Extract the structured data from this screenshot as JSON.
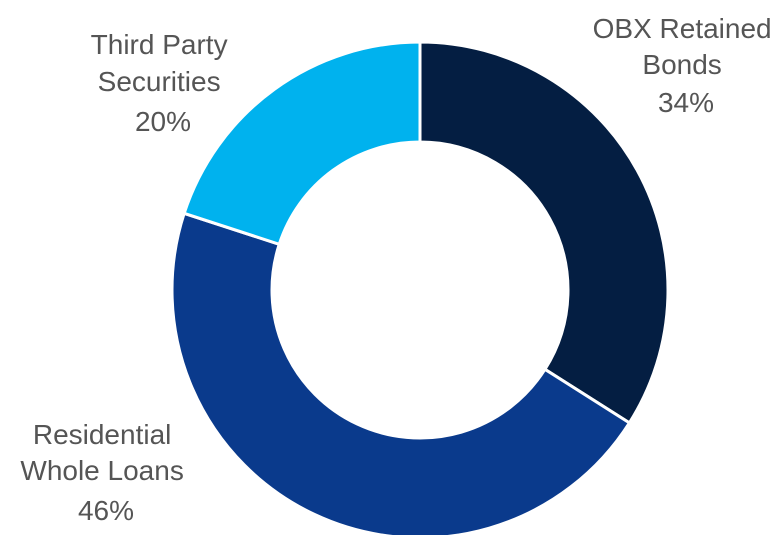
{
  "chart_data": {
    "type": "pie",
    "donut": true,
    "categories": [
      "OBX Retained Bonds",
      "Residential Whole Loans",
      "Third Party Securities"
    ],
    "values": [
      34,
      46,
      20
    ],
    "labels": [
      {
        "lines": [
          "OBX Retained",
          "Bonds"
        ],
        "value": "34%"
      },
      {
        "lines": [
          "Residential",
          "Whole Loans"
        ],
        "value": "46%"
      },
      {
        "lines": [
          "Third Party",
          "Securities"
        ],
        "value": "20%"
      }
    ],
    "colors": [
      "#041E42",
      "#0A3A8C",
      "#00B2EE"
    ],
    "start": "12 o'clock",
    "direction": "clockwise"
  }
}
